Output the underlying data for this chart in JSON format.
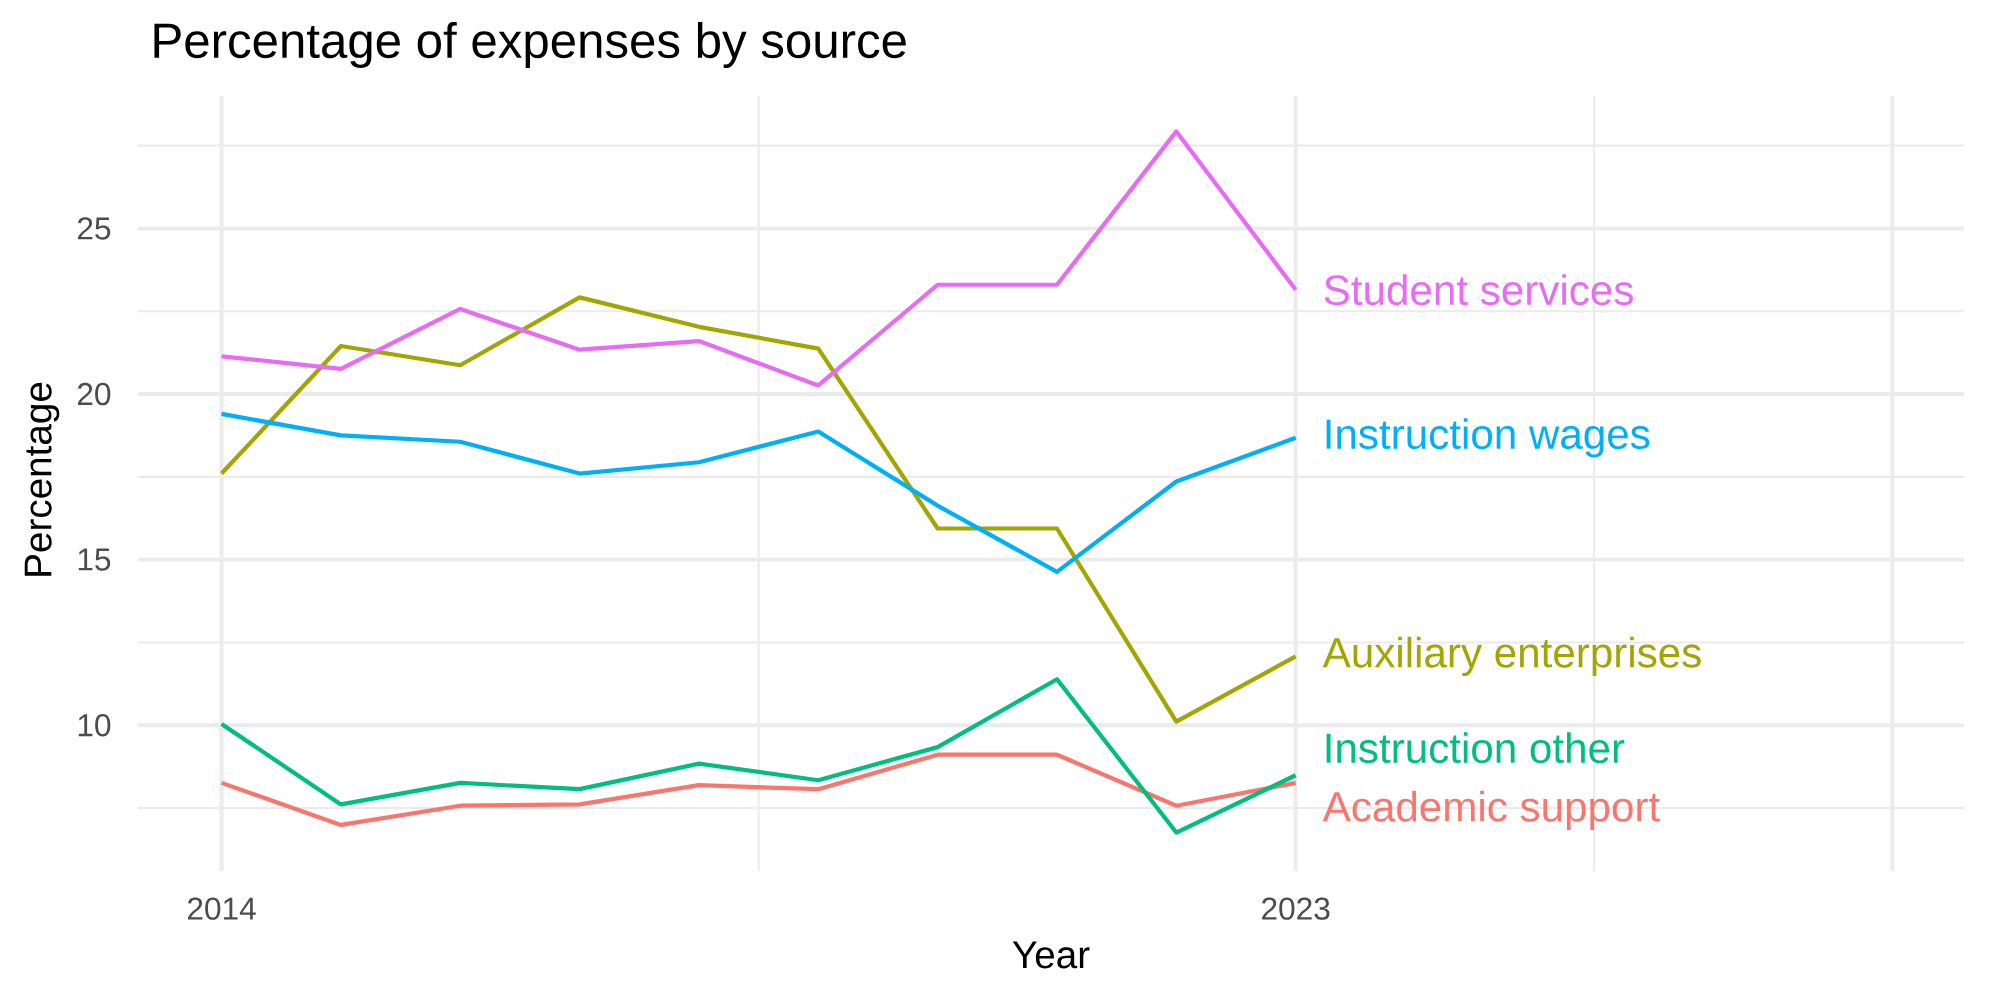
{
  "chart_data": {
    "type": "line",
    "title": "Percentage of expenses by source",
    "xlabel": "Year",
    "ylabel": "Percentage",
    "x": [
      2014,
      2015,
      2016,
      2017,
      2018,
      2019,
      2020,
      2021,
      2022,
      2023
    ],
    "xlim": [
      2013.3,
      2028.6
    ],
    "xticks": [
      2014,
      2023,
      {
        "value": 2028,
        "label": null
      }
    ],
    "ylim": [
      5.6,
      29.0
    ],
    "yticks": [
      10,
      15,
      20,
      25
    ],
    "grid": true,
    "series": [
      {
        "name": "Academic support",
        "color": "#F8766D",
        "values": [
          8.26,
          6.99,
          7.57,
          7.61,
          8.19,
          8.07,
          9.11,
          9.11,
          7.57,
          8.26
        ]
      },
      {
        "name": "Auxiliary enterprises",
        "color": "#A3A500",
        "values": [
          17.6,
          21.45,
          20.87,
          22.92,
          22.03,
          21.37,
          15.94,
          15.94,
          10.11,
          12.08
        ]
      },
      {
        "name": "Instruction other",
        "color": "#00BF7D",
        "values": [
          10.04,
          7.61,
          8.26,
          8.07,
          8.84,
          8.34,
          9.34,
          11.39,
          6.76,
          8.49
        ]
      },
      {
        "name": "Instruction wages",
        "color": "#00B0F6",
        "values": [
          19.4,
          18.75,
          18.56,
          17.6,
          17.94,
          18.87,
          16.63,
          14.63,
          17.36,
          18.68
        ]
      },
      {
        "name": "Student services",
        "color": "#E76BF3",
        "values": [
          21.14,
          20.76,
          22.57,
          21.34,
          21.6,
          20.26,
          23.3,
          23.3,
          27.93,
          23.15
        ]
      }
    ]
  }
}
